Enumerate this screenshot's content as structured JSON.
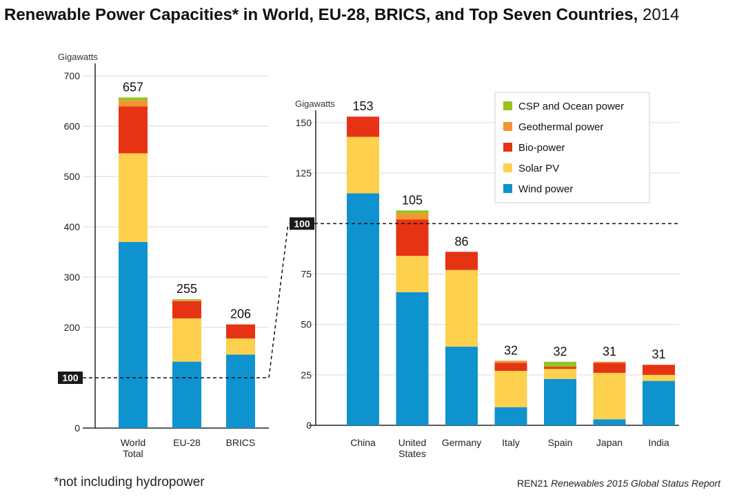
{
  "title": {
    "main": "Renewable Power Capacities* in World, EU-28, BRICS, and Top Seven Countries,",
    "year": "2014"
  },
  "footnote": "*not including hydropower",
  "source": {
    "org": "REN21",
    "publication": "Renewables 2015 Global Status Report"
  },
  "colors": {
    "wind": "#0f93cf",
    "solar": "#fdd14e",
    "bio": "#e63313",
    "geo": "#f49533",
    "csp": "#98c21f",
    "badge": "#1a1a1a"
  },
  "chart_data": [
    {
      "type": "bar",
      "stacked": true,
      "ylabel": "Gigawatts",
      "ylim": [
        0,
        700
      ],
      "yticks": [
        0,
        100,
        200,
        300,
        400,
        500,
        600,
        700
      ],
      "reference_line": {
        "value": 100,
        "label": "100"
      },
      "categories": [
        [
          "World",
          "Total"
        ],
        [
          "EU-28"
        ],
        [
          "BRICS"
        ]
      ],
      "totals": [
        "657",
        "255",
        "206"
      ],
      "series": [
        {
          "name": "Wind power",
          "key": "wind",
          "values": [
            370,
            132,
            146
          ]
        },
        {
          "name": "Solar PV",
          "key": "solar",
          "values": [
            176,
            86,
            32
          ]
        },
        {
          "name": "Bio-power",
          "key": "bio",
          "values": [
            93,
            34,
            28
          ]
        },
        {
          "name": "Geothermal power",
          "key": "geo",
          "values": [
            12,
            2,
            0
          ]
        },
        {
          "name": "CSP and Ocean power",
          "key": "csp",
          "values": [
            6,
            2,
            0
          ]
        }
      ]
    },
    {
      "type": "bar",
      "stacked": true,
      "ylabel": "Gigawatts",
      "ylim": [
        0,
        150
      ],
      "yticks": [
        0,
        25,
        50,
        75,
        100,
        125,
        150
      ],
      "reference_line": {
        "value": 100,
        "label": "100"
      },
      "categories": [
        [
          "China"
        ],
        [
          "United",
          "States"
        ],
        [
          "Germany"
        ],
        [
          "Italy"
        ],
        [
          "Spain"
        ],
        [
          "Japan"
        ],
        [
          "India"
        ]
      ],
      "totals": [
        "153",
        "105",
        "86",
        "32",
        "32",
        "31",
        "31"
      ],
      "series": [
        {
          "name": "Wind power",
          "key": "wind",
          "values": [
            115,
            66,
            39,
            9,
            23,
            3,
            22
          ]
        },
        {
          "name": "Solar PV",
          "key": "solar",
          "values": [
            28,
            18,
            38,
            18,
            5,
            23,
            3
          ]
        },
        {
          "name": "Bio-power",
          "key": "bio",
          "values": [
            10,
            18,
            9,
            4,
            1,
            5,
            5
          ]
        },
        {
          "name": "Geothermal power",
          "key": "geo",
          "values": [
            0,
            3,
            0,
            1,
            0,
            0.5,
            0
          ]
        },
        {
          "name": "CSP and Ocean power",
          "key": "csp",
          "values": [
            0,
            1.5,
            0,
            0,
            2.5,
            0,
            0
          ]
        }
      ]
    }
  ],
  "legend": [
    {
      "label": "CSP and Ocean power",
      "key": "csp"
    },
    {
      "label": "Geothermal power",
      "key": "geo"
    },
    {
      "label": "Bio-power",
      "key": "bio"
    },
    {
      "label": "Solar PV",
      "key": "solar"
    },
    {
      "label": "Wind power",
      "key": "wind"
    }
  ]
}
